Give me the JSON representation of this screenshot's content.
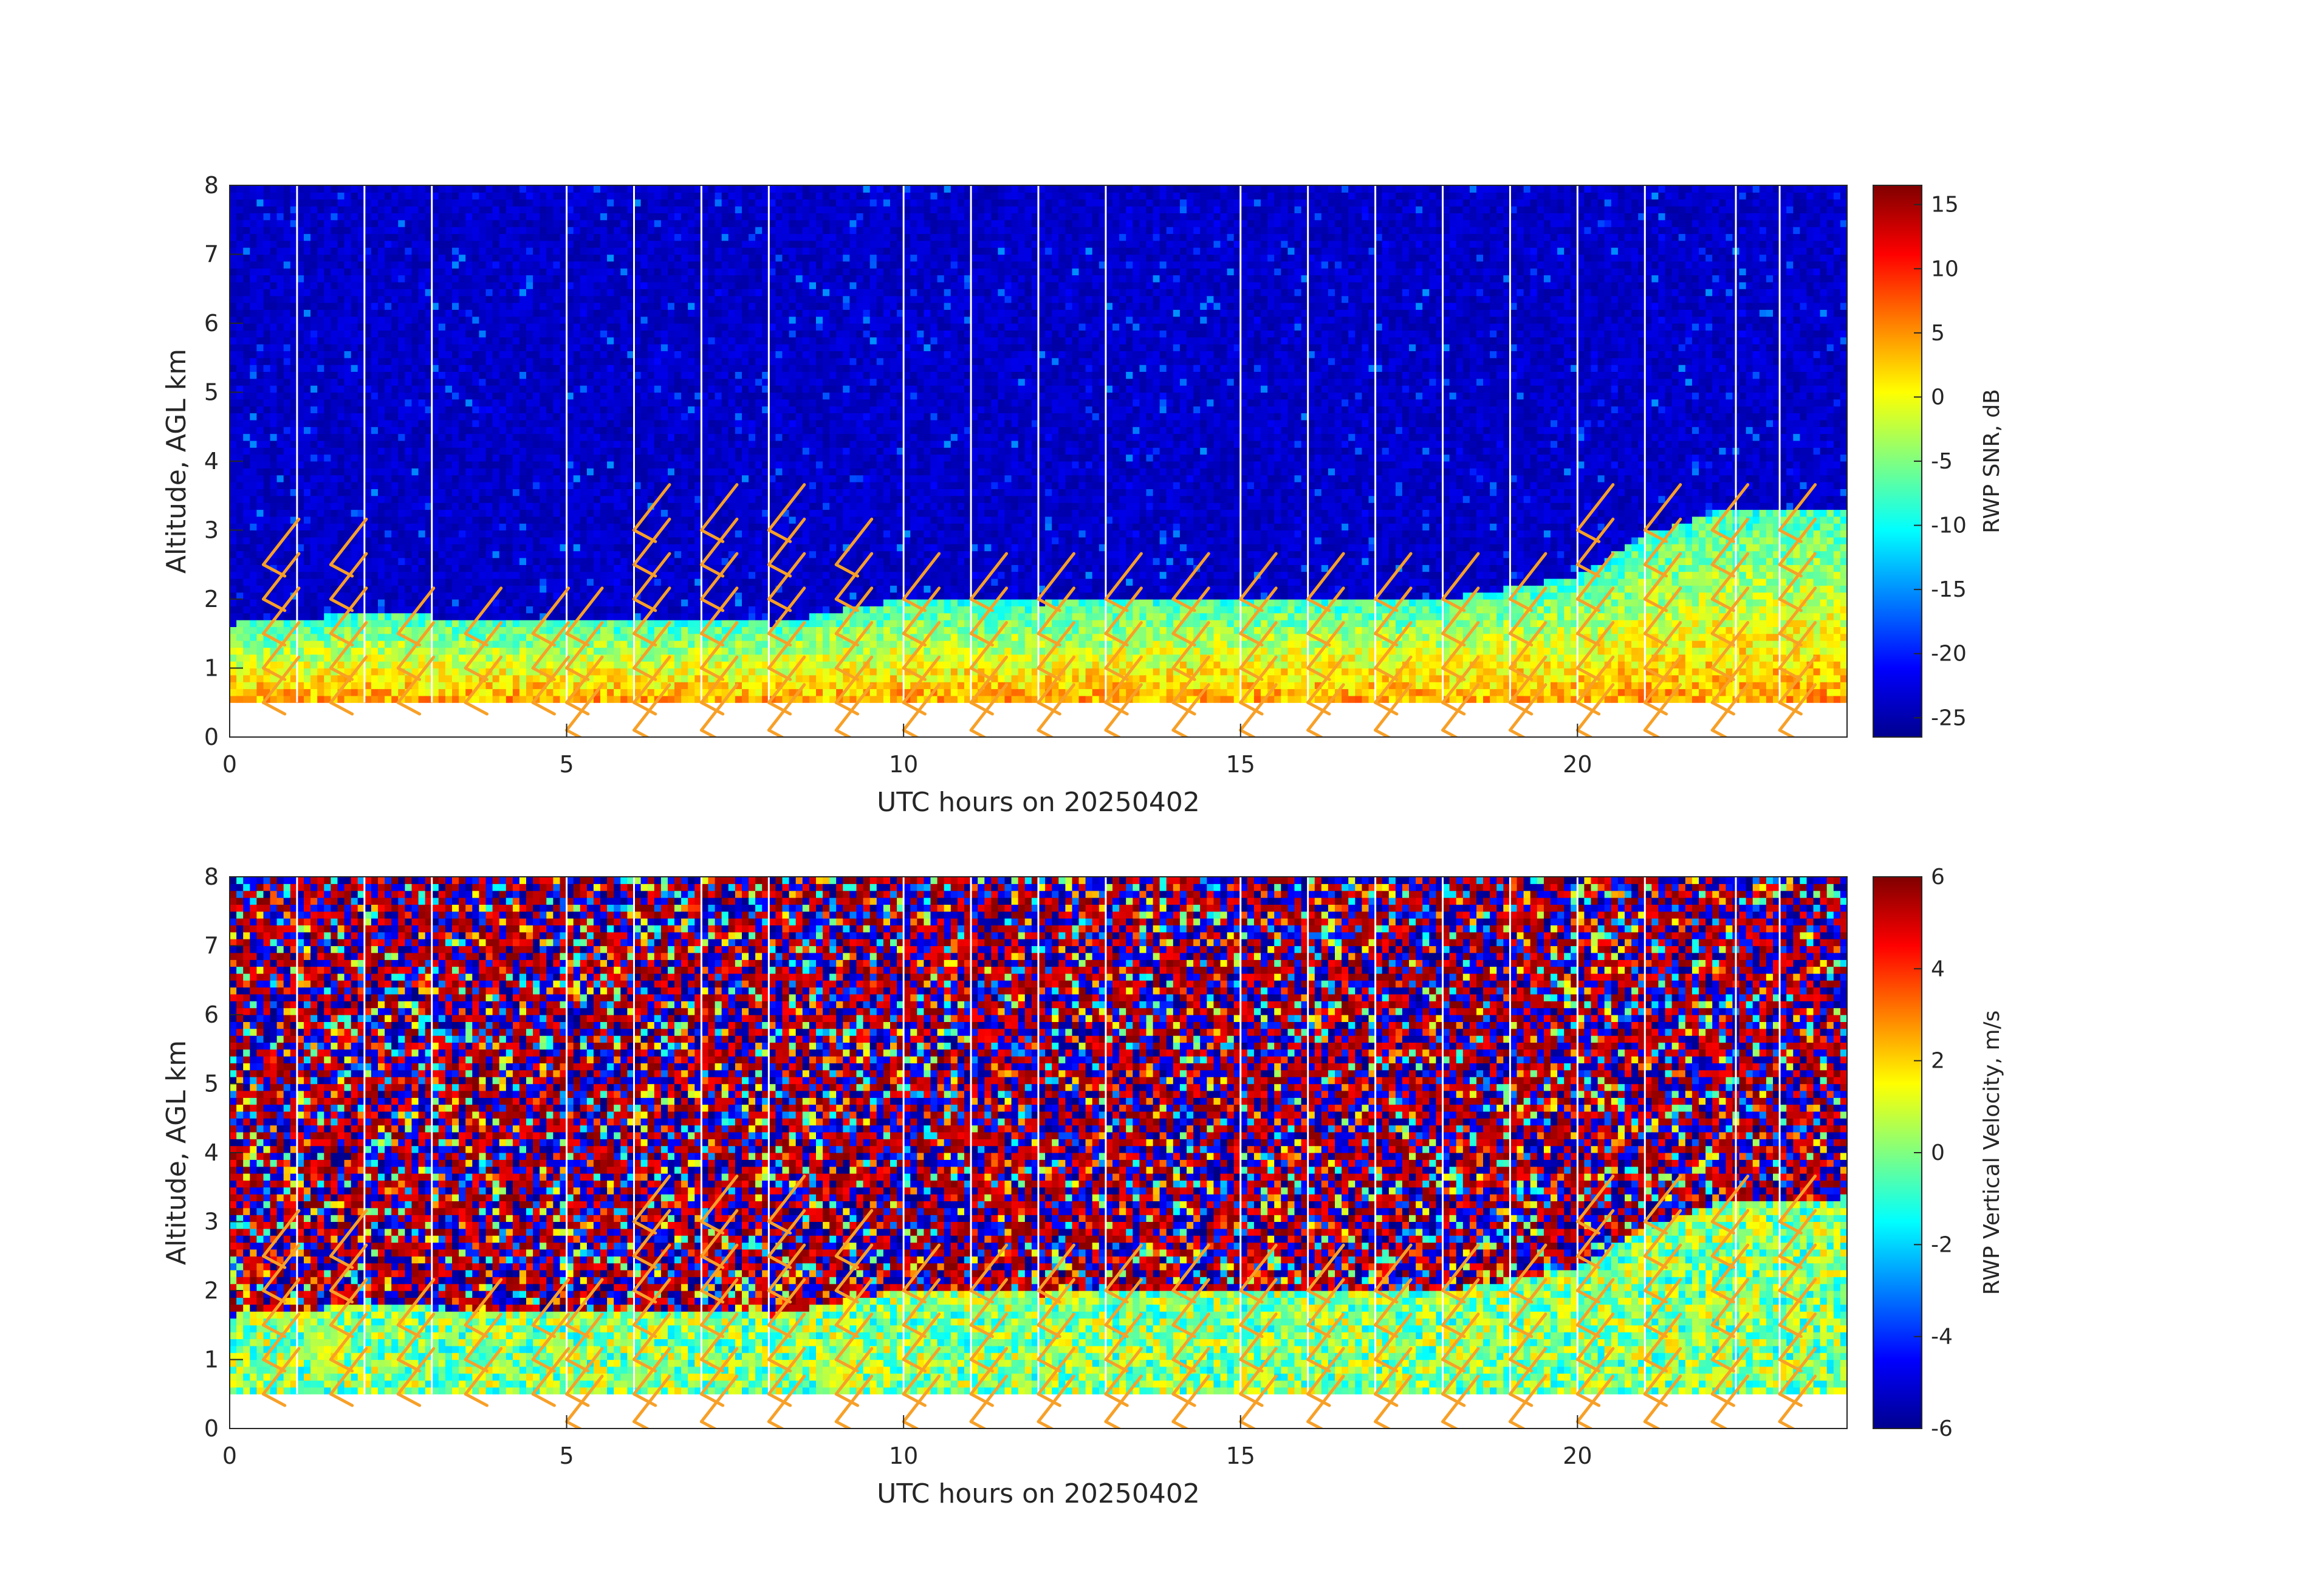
{
  "chart_data": [
    {
      "type": "heatmap",
      "panel": "top",
      "xlabel": "UTC hours on 20250402",
      "ylabel": "Altitude, AGL km",
      "xlim": [
        0,
        24
      ],
      "ylim": [
        0,
        8
      ],
      "xticks": [
        0,
        5,
        10,
        15,
        20
      ],
      "yticks": [
        0,
        1,
        2,
        3,
        4,
        5,
        6,
        7,
        8
      ],
      "colorbar": {
        "label": "RWP SNR, dB",
        "range": [
          -26.5,
          16.5
        ],
        "ticks": [
          -25,
          -20,
          -15,
          -10,
          -5,
          0,
          5,
          10,
          15
        ],
        "colormap": "jet"
      },
      "field": "snr",
      "data_start_altitude_km": 0.5,
      "data_top_altitude_km": 7.9,
      "layer": {
        "hours": [
          0,
          2,
          4,
          6,
          8,
          9,
          10,
          12,
          14,
          16,
          18,
          20,
          21,
          22,
          23,
          24
        ],
        "top_km": [
          1.6,
          1.75,
          1.65,
          1.65,
          1.6,
          1.8,
          1.95,
          1.9,
          1.95,
          2.0,
          1.95,
          2.3,
          2.9,
          3.2,
          3.3,
          3.3
        ],
        "mid_value_db": -8,
        "bottom_value_db": 4,
        "background_value_db": -25
      },
      "gap_hours": [
        1,
        2,
        3,
        5,
        6,
        7,
        8,
        10,
        11,
        12,
        13,
        15,
        16,
        17,
        18,
        19,
        20,
        21,
        22.35,
        23
      ]
    },
    {
      "type": "heatmap",
      "panel": "bottom",
      "xlabel": "UTC hours on 20250402",
      "ylabel": "Altitude, AGL km",
      "xlim": [
        0,
        24
      ],
      "ylim": [
        0,
        8
      ],
      "xticks": [
        0,
        5,
        10,
        15,
        20
      ],
      "yticks": [
        0,
        1,
        2,
        3,
        4,
        5,
        6,
        7,
        8
      ],
      "colorbar": {
        "label": "RWP Vertical Velocity, m/s",
        "range": [
          -6,
          6
        ],
        "ticks": [
          -6,
          -4,
          -2,
          0,
          2,
          4,
          6
        ],
        "colormap": "jet"
      },
      "field": "vertical_velocity",
      "data_start_altitude_km": 0.5,
      "data_top_altitude_km": 7.9,
      "layer": {
        "hours": [
          0,
          2,
          4,
          6,
          8,
          9,
          10,
          12,
          14,
          16,
          18,
          20,
          21,
          22,
          23,
          24
        ],
        "top_km": [
          1.6,
          1.75,
          1.65,
          1.65,
          1.6,
          1.8,
          1.95,
          1.9,
          1.95,
          2.0,
          1.95,
          2.3,
          2.9,
          3.2,
          3.3,
          3.3
        ],
        "layer_value_ms": -0.5,
        "upper_value_range_ms": [
          -6,
          6
        ]
      },
      "gap_hours": [
        1,
        2,
        3,
        5,
        6,
        7,
        8,
        10,
        11,
        12,
        13,
        15,
        16,
        17,
        18,
        19,
        20,
        21,
        22.35,
        23
      ]
    }
  ],
  "wind_barbs": {
    "color": "#f7a028",
    "hours": [
      0.5,
      1.5,
      2.5,
      3.5,
      4.5,
      5.0,
      6.0,
      7.0,
      8.0,
      9.0,
      10.0,
      11.0,
      12.0,
      13.0,
      14.0,
      15.0,
      16.0,
      17.0,
      18.0,
      19.0,
      20.0,
      21.0,
      22.0,
      23.0
    ],
    "altitudes_km": [
      0.1,
      0.5,
      1.0,
      1.5,
      2.0,
      2.5,
      3.0
    ],
    "barb_tops_km": [
      2.6,
      2.6,
      1.7,
      1.7,
      1.7,
      1.9,
      3.0,
      3.0,
      3.0,
      2.7,
      2.0,
      2.0,
      2.1,
      2.3,
      2.3,
      2.3,
      2.3,
      2.3,
      2.3,
      2.3,
      3.0,
      3.4,
      3.4,
      3.4
    ],
    "ground_barbs_from_hour": 5
  }
}
